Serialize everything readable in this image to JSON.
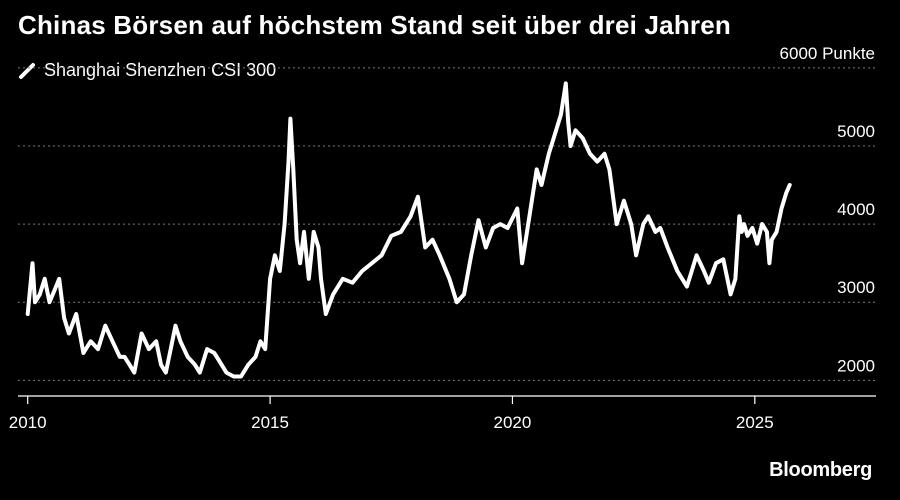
{
  "header": {
    "title": "Chinas Börsen auf höchstem Stand seit über drei Jahren",
    "source": "Bloomberg"
  },
  "chart_data": {
    "type": "line",
    "title": "Chinas Börsen auf höchstem Stand seit über drei Jahren",
    "xlabel": "",
    "ylabel": "",
    "ylim": [
      1800,
      6100
    ],
    "xlim": [
      2009.8,
      2027.5
    ],
    "y_ticks": [
      {
        "value": 2000,
        "label": "2000"
      },
      {
        "value": 3000,
        "label": "3000"
      },
      {
        "value": 4000,
        "label": "4000"
      },
      {
        "value": 5000,
        "label": "5000"
      },
      {
        "value": 6000,
        "label": "6000 Punkte"
      }
    ],
    "x_ticks": [
      {
        "value": 2010,
        "label": "2010"
      },
      {
        "value": 2015,
        "label": "2015"
      },
      {
        "value": 2020,
        "label": "2020"
      },
      {
        "value": 2025,
        "label": "2025"
      }
    ],
    "grid": true,
    "colors": {
      "line": "#ffffff",
      "grid": "#7a7a7a",
      "axis": "#ffffff",
      "background": "#000000"
    },
    "series": [
      {
        "name": "Shanghai Shenzhen CSI 300",
        "x": [
          2010.0,
          2010.1,
          2010.15,
          2010.25,
          2010.35,
          2010.45,
          2010.55,
          2010.65,
          2010.75,
          2010.85,
          2011.0,
          2011.15,
          2011.3,
          2011.45,
          2011.6,
          2011.75,
          2011.9,
          2012.0,
          2012.1,
          2012.2,
          2012.35,
          2012.5,
          2012.65,
          2012.75,
          2012.85,
          2012.95,
          2013.05,
          2013.15,
          2013.3,
          2013.45,
          2013.55,
          2013.7,
          2013.85,
          2013.95,
          2014.1,
          2014.25,
          2014.4,
          2014.55,
          2014.7,
          2014.8,
          2014.9,
          2015.0,
          2015.1,
          2015.2,
          2015.3,
          2015.38,
          2015.42,
          2015.48,
          2015.55,
          2015.62,
          2015.7,
          2015.8,
          2015.9,
          2016.0,
          2016.05,
          2016.15,
          2016.3,
          2016.5,
          2016.7,
          2016.9,
          2017.1,
          2017.3,
          2017.5,
          2017.7,
          2017.9,
          2018.05,
          2018.2,
          2018.35,
          2018.5,
          2018.7,
          2018.85,
          2019.0,
          2019.15,
          2019.3,
          2019.45,
          2019.6,
          2019.75,
          2019.9,
          2020.1,
          2020.2,
          2020.35,
          2020.5,
          2020.6,
          2020.75,
          2020.9,
          2021.0,
          2021.1,
          2021.15,
          2021.2,
          2021.3,
          2021.45,
          2021.6,
          2021.75,
          2021.9,
          2022.0,
          2022.15,
          2022.3,
          2022.45,
          2022.55,
          2022.7,
          2022.8,
          2022.95,
          2023.05,
          2023.2,
          2023.4,
          2023.6,
          2023.8,
          2023.95,
          2024.05,
          2024.2,
          2024.35,
          2024.5,
          2024.6,
          2024.68,
          2024.73,
          2024.78,
          2024.85,
          2024.95,
          2025.05,
          2025.15,
          2025.25,
          2025.3,
          2025.35,
          2025.45,
          2025.55,
          2025.65,
          2025.72
        ],
        "values": [
          2850,
          3500,
          3000,
          3100,
          3300,
          3000,
          3150,
          3300,
          2800,
          2600,
          2850,
          2350,
          2500,
          2400,
          2700,
          2500,
          2300,
          2300,
          2200,
          2100,
          2600,
          2400,
          2500,
          2200,
          2100,
          2400,
          2700,
          2500,
          2300,
          2200,
          2100,
          2400,
          2350,
          2250,
          2100,
          2050,
          2050,
          2200,
          2300,
          2500,
          2400,
          3300,
          3600,
          3400,
          4000,
          4800,
          5350,
          4700,
          3800,
          3500,
          3900,
          3300,
          3900,
          3700,
          3300,
          2850,
          3100,
          3300,
          3250,
          3400,
          3500,
          3600,
          3850,
          3900,
          4100,
          4350,
          3700,
          3800,
          3600,
          3300,
          3000,
          3100,
          3600,
          4050,
          3700,
          3950,
          4000,
          3950,
          4200,
          3500,
          4100,
          4700,
          4500,
          4900,
          5200,
          5400,
          5800,
          5300,
          5000,
          5200,
          5100,
          4900,
          4800,
          4900,
          4700,
          4000,
          4300,
          4000,
          3600,
          4000,
          4100,
          3900,
          3950,
          3700,
          3400,
          3200,
          3600,
          3400,
          3250,
          3500,
          3550,
          3100,
          3300,
          4100,
          3900,
          4000,
          3850,
          3950,
          3750,
          4000,
          3900,
          3500,
          3800,
          3900,
          4200,
          4400,
          4500
        ]
      }
    ]
  }
}
